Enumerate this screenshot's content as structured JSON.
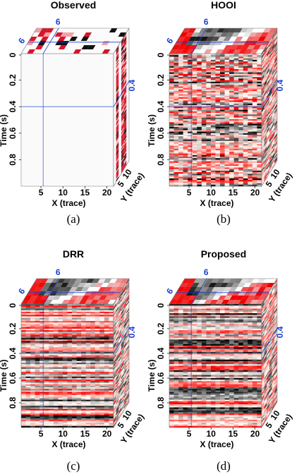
{
  "panels": [
    {
      "id": "a",
      "title": "Observed",
      "caption": "(a)",
      "mode": "observed"
    },
    {
      "id": "b",
      "title": "HOOI",
      "caption": "(b)",
      "mode": "noisy"
    },
    {
      "id": "c",
      "title": "DRR",
      "caption": "(c)",
      "mode": "clean"
    },
    {
      "id": "d",
      "title": "Proposed",
      "caption": "(d)",
      "mode": "clean2"
    }
  ],
  "axes": {
    "time_label": "Time (s)",
    "x_label": "X (trace)",
    "y_label": "Y (trace)",
    "time_ticks": [
      "0",
      "0.2",
      "0.4",
      "0.6",
      "0.8"
    ],
    "x_ticks": [
      "5",
      "10",
      "15",
      "20"
    ],
    "y_ticks": [
      "5",
      "10"
    ]
  },
  "slice_markers": {
    "x": "6",
    "y": "6",
    "time": "0.4"
  },
  "colors": {
    "blue_guide": "#1a3fd0",
    "red": "#d6162b",
    "black": "#000000"
  }
}
